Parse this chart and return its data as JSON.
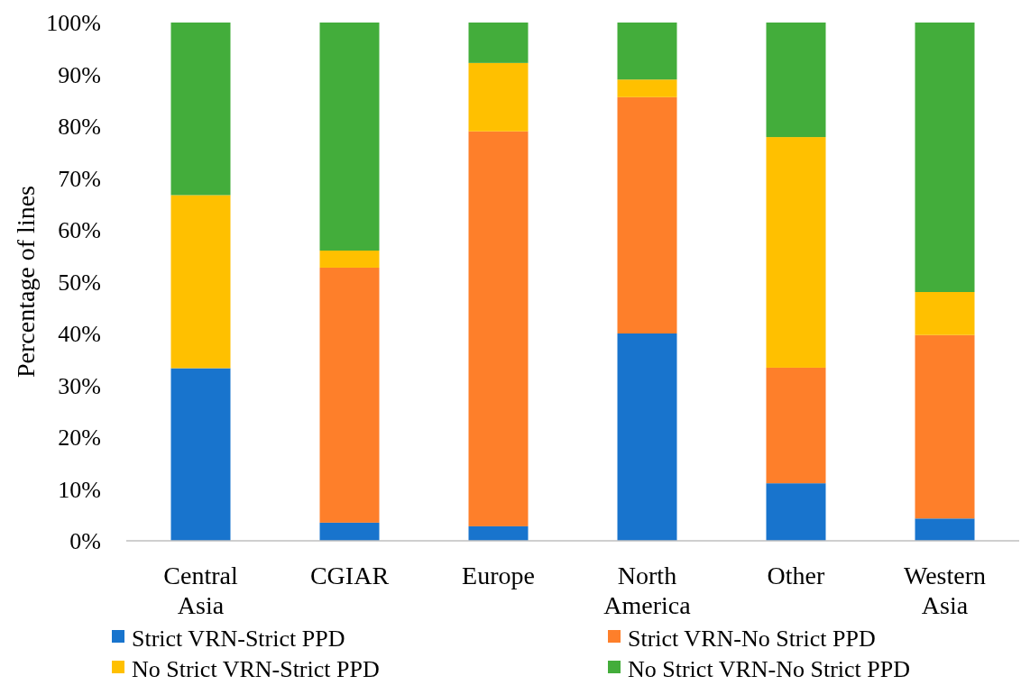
{
  "chart_data": {
    "type": "bar",
    "stacked": true,
    "ylabel": "Percentage of lines",
    "categories": [
      "Central Asia",
      "CGIAR",
      "Europe",
      "North America",
      "Other",
      "Western Asia"
    ],
    "series": [
      {
        "name": "Strict VRN-Strict PPD",
        "color": "#1874cd",
        "values": [
          33.3,
          3.5,
          2.8,
          40,
          11.1,
          4.3
        ]
      },
      {
        "name": "Strict VRN-No Strict PPD",
        "color": "#fe7f2a",
        "values": [
          0,
          49.2,
          76.2,
          45.6,
          22.3,
          35.4
        ]
      },
      {
        "name": "No Strict VRN-Strict PPD",
        "color": "#ffc000",
        "values": [
          33.4,
          3.3,
          13.2,
          3.4,
          44.5,
          8.3
        ]
      },
      {
        "name": "No Strict VRN-No Strict PPD",
        "color": "#43ad3b",
        "values": [
          33.3,
          44,
          7.8,
          11,
          22.1,
          52
        ]
      }
    ],
    "ylim": [
      0,
      100
    ],
    "yticks": [
      {
        "value": 0,
        "label": "0%"
      },
      {
        "value": 10,
        "label": "10%"
      },
      {
        "value": 20,
        "label": "20%"
      },
      {
        "value": 30,
        "label": "30%"
      },
      {
        "value": 40,
        "label": "40%"
      },
      {
        "value": 50,
        "label": "50%"
      },
      {
        "value": 60,
        "label": "60%"
      },
      {
        "value": 70,
        "label": "70%"
      },
      {
        "value": 80,
        "label": "80%"
      },
      {
        "value": 90,
        "label": "90%"
      },
      {
        "value": 100,
        "label": "100%"
      }
    ],
    "legend": "bottom",
    "grid": false
  }
}
